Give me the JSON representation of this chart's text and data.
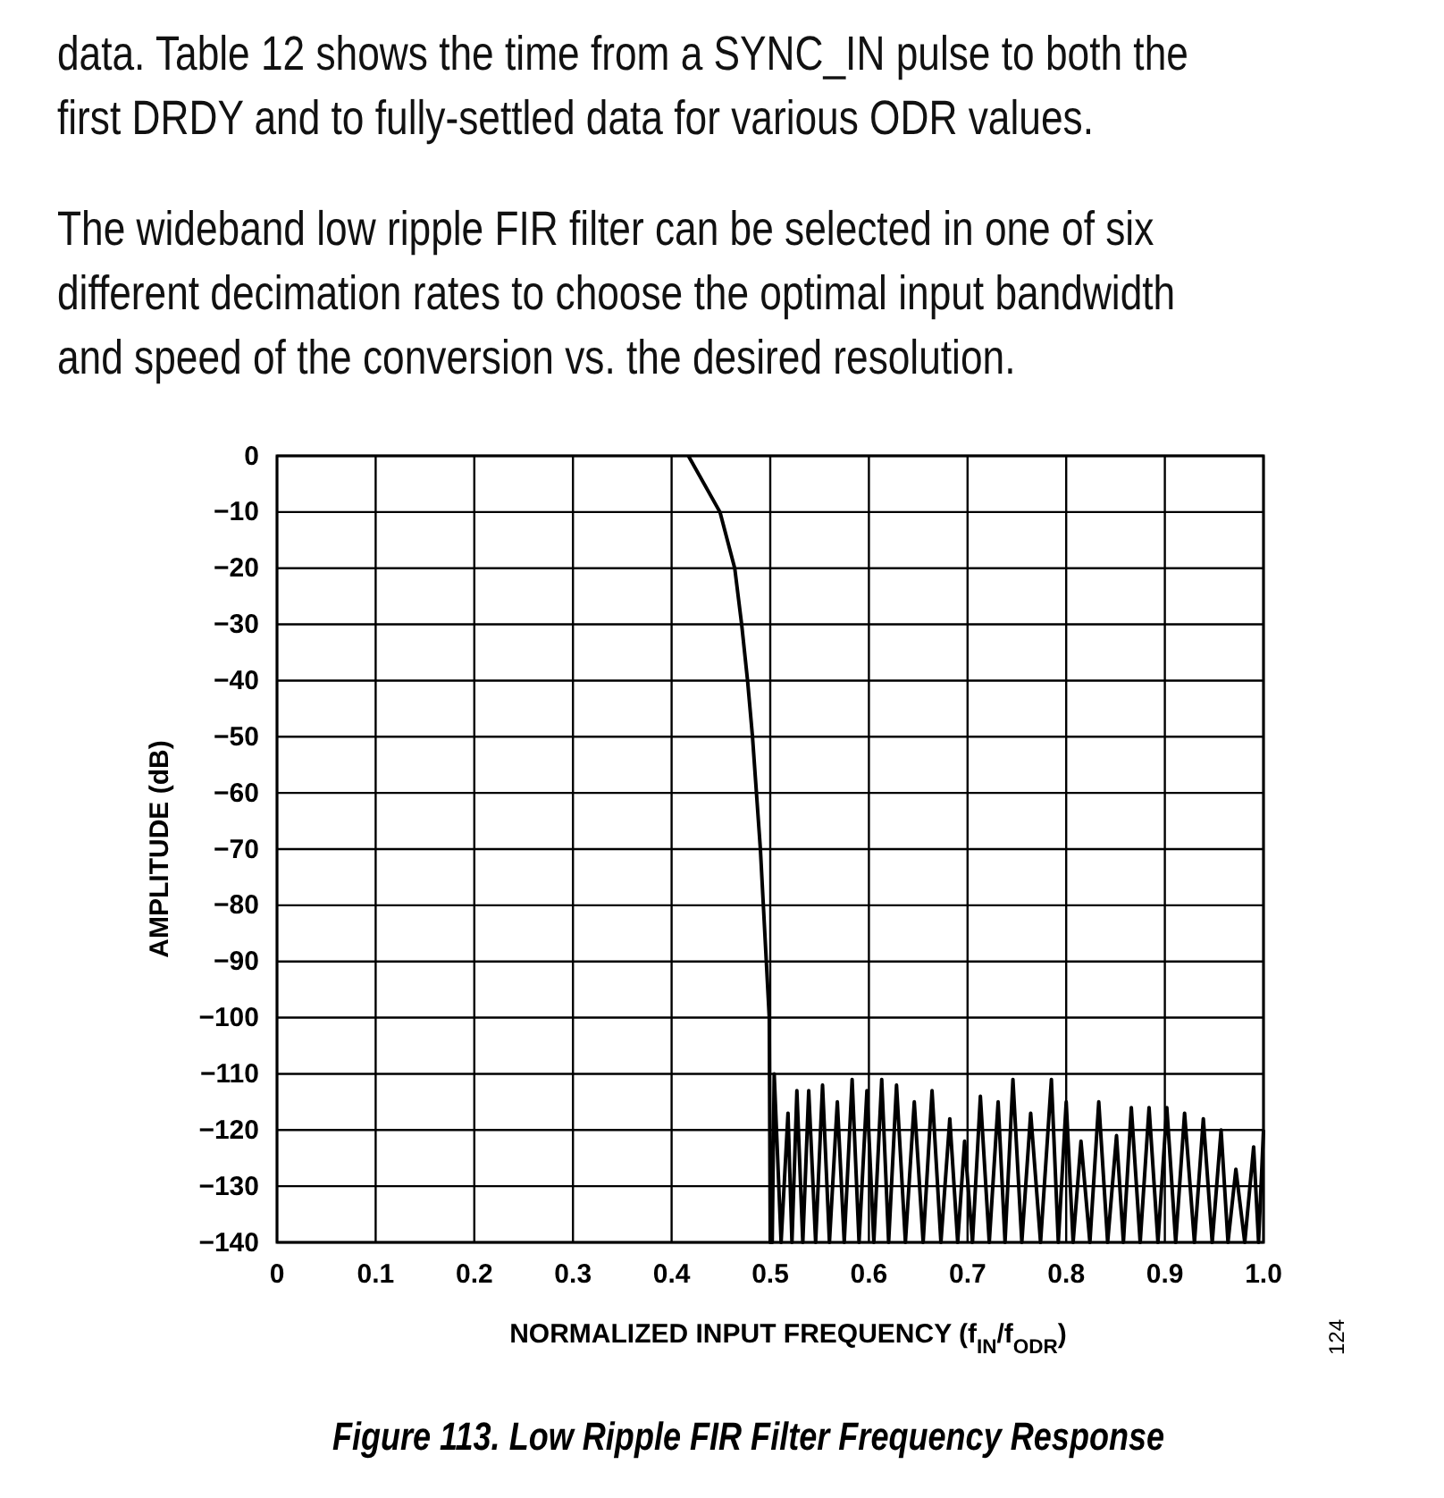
{
  "chart_data": {
    "type": "line",
    "title": "Figure 113. Low Ripple FIR Filter Frequency Response",
    "xlabel": "NORMALIZED INPUT FREQUENCY (f$_{IN}$/f$_{ODR}$)",
    "ylabel": "AMPLITUDE (dB)",
    "annotations": [
      "data. Table 12 shows the time from a SYNC_IN pulse to both the\nfirst DRDY and to fully-settled data for various ODR values.",
      "The wideband low ripple FIR filter can be selected in one of six\ndifferent decimation rates to choose the optimal input bandwidth\nand speed of the conversion vs. the desired resolution.",
      "124"
    ],
    "xlim": [
      0,
      1
    ],
    "ylim": [
      -140,
      0
    ],
    "xticks": [
      0,
      0.1,
      0.2,
      0.3,
      0.4,
      0.5,
      0.6,
      0.7,
      0.8,
      0.9,
      {
        "value": 1,
        "label": "1.0"
      }
    ],
    "yticks": [
      0,
      {
        "value": -10,
        "label": "−10"
      },
      {
        "value": -20,
        "label": "−20"
      },
      {
        "value": -30,
        "label": "−30"
      },
      {
        "value": -40,
        "label": "−40"
      },
      {
        "value": -50,
        "label": "−50"
      },
      {
        "value": -60,
        "label": "−60"
      },
      {
        "value": -70,
        "label": "−70"
      },
      {
        "value": -80,
        "label": "−80"
      },
      {
        "value": -90,
        "label": "−90"
      },
      {
        "value": -100,
        "label": "−100"
      },
      {
        "value": -110,
        "label": "−110"
      },
      {
        "value": -120,
        "label": "−120"
      },
      {
        "value": -130,
        "label": "−130"
      },
      {
        "value": -140,
        "label": "−140"
      }
    ],
    "grid": true,
    "marker": "none",
    "line_style": "solid",
    "series": [
      {
        "color": "#000000",
        "x": [
          0.417,
          0.449,
          0.464,
          0.471,
          0.477,
          0.482,
          0.486,
          0.49,
          0.493,
          0.496,
          0.499,
          0.5,
          0.502,
          0.504,
          0.511,
          0.518,
          0.522,
          0.527,
          0.533,
          0.539,
          0.546,
          0.553,
          0.56,
          0.568,
          0.575,
          0.583,
          0.59,
          0.598,
          0.605,
          0.613,
          0.62,
          0.628,
          0.637,
          0.646,
          0.655,
          0.664,
          0.673,
          0.682,
          0.69,
          0.697,
          0.705,
          0.713,
          0.722,
          0.731,
          0.738,
          0.746,
          0.755,
          0.764,
          0.774,
          0.785,
          0.792,
          0.8,
          0.807,
          0.815,
          0.824,
          0.833,
          0.842,
          0.851,
          0.858,
          0.866,
          0.875,
          0.884,
          0.893,
          0.902,
          0.911,
          0.92,
          0.93,
          0.939,
          0.948,
          0.957,
          0.964,
          0.972,
          0.981,
          0.99,
          0.995,
          1.0
        ],
        "values": [
          0,
          -10,
          -20,
          -30,
          -40,
          -50,
          -60,
          -70,
          -80,
          -90,
          -100,
          -140,
          -140,
          -110,
          -140,
          -117,
          -140,
          -113,
          -140,
          -113,
          -140,
          -112,
          -140,
          -115,
          -140,
          -111,
          -140,
          -113,
          -140,
          -111,
          -140,
          -112,
          -140,
          -115,
          -140,
          -113,
          -140,
          -118,
          -140,
          -122,
          -140,
          -114,
          -140,
          -115,
          -140,
          -111,
          -140,
          -117,
          -140,
          -111,
          -140,
          -115,
          -140,
          -122,
          -140,
          -115,
          -140,
          -121,
          -140,
          -116,
          -140,
          -116,
          -140,
          -116,
          -140,
          -117,
          -140,
          -118,
          -140,
          -120,
          -140,
          -127,
          -140,
          -123,
          -140,
          -120
        ]
      }
    ]
  }
}
